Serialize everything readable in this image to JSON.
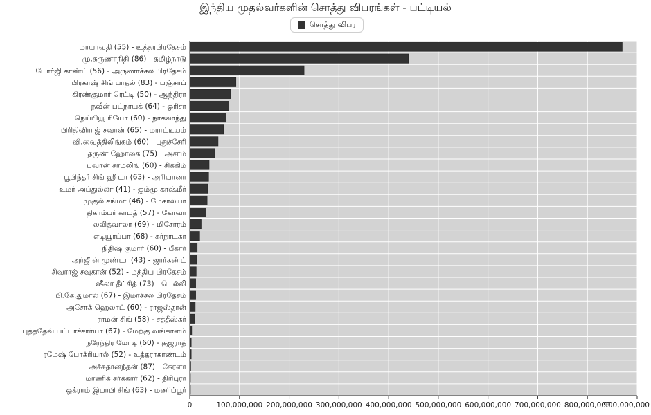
{
  "chart_data": {
    "type": "bar",
    "orientation": "horizontal",
    "title": "இந்திய முதல்வர்களின் சொத்து விபரங்கள் - பட்டியல்",
    "legend_position": "top-center",
    "grid": true,
    "xlim": [
      0,
      900000000
    ],
    "x_ticks": [
      "0",
      "100,000,000",
      "200,000,000",
      "300,000,000",
      "400,000,000",
      "500,000,000",
      "600,000,000",
      "700,000,000",
      "800,000,000",
      "900,000,000"
    ],
    "categories": [
      "மாயாவதி (55) - உத்தரபிரதேசம்",
      "மு.கருணாநிதி (86) - தமிழ்நாடு",
      "டோர்ஜி காண்ட் (56) - அருணாச்சல பிரதேசம்",
      "பிரகாஷ் சிங் பாதல் (83) - பஞ்சாப்",
      "கிரண்குமார் ரெட்டி (50) - ஆந்திரா",
      "நவீன் பட்நாயக் (64) - ஒரிசா",
      "நெய்பியூ ரியோ (60) - நாகலாந்து",
      "பிரிதிவிராஜ் சவான் (65) - மராட்டியம்",
      "வி.வைத்திலிங்கம் (60) - புதுச்சேரி",
      "தருண் ஹோகை (75) - அசாம்",
      "பவான் சாம்லிங் (60) - சிக்கிம்",
      "பூபிந்தர் சிங் ஹீ  டா (63) - அரியானா",
      "உமர் அப்துல்லா (41) - ஜம்மு காஷ்மீர்",
      "முகுல் சங்மா (46) - மேகாலயா",
      "திகாம்பர் காமத் (57) - கோவா",
      "லலித்வாலா (69) - மிசோரம்",
      "எடியூரப்பா (68) - கர்நாடகா",
      "நிதிஷ் குமார் (60) - பீகார்",
      "அர்ஜீ ன் முண்டா (43) - ஜார்கண்ட்",
      "சிவராஜ் சவுகான் (52) - மத்திய பிரதேசம்",
      "ஷீலா தீட்சித் (73) - டெல்லி",
      "பி.கே.துமால் (67) - இமாச்சல பிரதேசம்",
      "அசோக் ஹெலாட் (60) - ராஜஸ்தான்",
      "ராமன் சிங் (58) - சத்தீஸ்கர்",
      "புத்ததேவ் பட்டாச்சார்யா (67) - மேற்கு வங்காளம்",
      "நரேந்திர மோடி (60) - குஜராத்",
      "ரமேஷ் போக்ரியால் (52) - உத்தராகாண்டம்",
      "அச்சுதானந்தன் (87) - கேரளா",
      "மாணிக் சர்க்கார் (62) - திரிபுரா",
      "ஒக்ராம் இபாபி சிங் (63) - மணிப்பூர்"
    ],
    "series": [
      {
        "name": "சொத்து விபர",
        "color": "#333333",
        "values": [
          870000000,
          440000000,
          230000000,
          93000000,
          82000000,
          79000000,
          73000000,
          68000000,
          57000000,
          50000000,
          39000000,
          38000000,
          36000000,
          35000000,
          33000000,
          23000000,
          20000000,
          15000000,
          14000000,
          13000000,
          12000000,
          12000000,
          11000000,
          10000000,
          4000000,
          3000000,
          3000000,
          2000000,
          1000000,
          1000000
        ]
      }
    ],
    "colors": {
      "plot_background": "#d3d3d3",
      "gridline": "#ffffff",
      "bar_border": "#222222"
    }
  }
}
